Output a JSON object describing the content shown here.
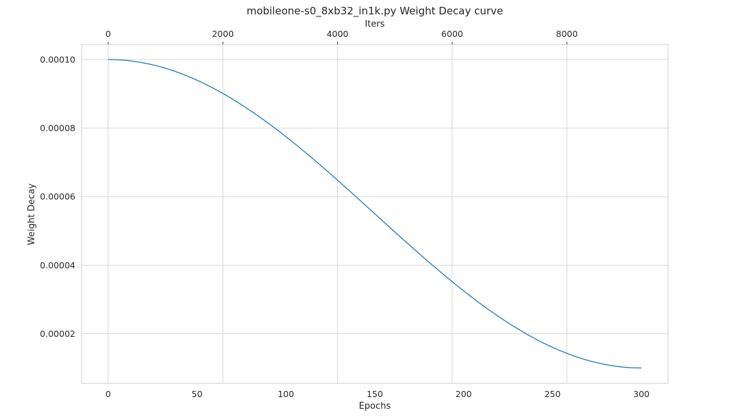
{
  "chart_data": {
    "type": "line",
    "title": "mobileone-s0_8xb32_in1k.py Weight Decay curve",
    "xlabel": "Epochs",
    "x2label": "Iters",
    "ylabel": "Weight Decay",
    "xlim": [
      -15,
      315
    ],
    "ylim": [
      5.5e-06,
      0.0001044
    ],
    "x_ticks": [
      0,
      50,
      100,
      150,
      200,
      250,
      300
    ],
    "x2_ticks": [
      0,
      2000,
      4000,
      6000,
      8000
    ],
    "x2_ticks_display": [
      "0",
      "2000",
      "4000",
      "6000",
      "8000"
    ],
    "y_ticks": [
      2e-05,
      4e-05,
      6e-05,
      8e-05,
      0.0001
    ],
    "y_ticks_display": [
      "0.00002",
      "0.00004",
      "0.00006",
      "0.00008",
      "0.00010"
    ],
    "iters_per_epoch": 31,
    "grid": true,
    "series": [
      {
        "color": "#1f77b4",
        "start_value": 0.0001,
        "end_value": 1e-05,
        "x_start": 0,
        "x_end": 300,
        "schedule": "cosine"
      }
    ]
  }
}
